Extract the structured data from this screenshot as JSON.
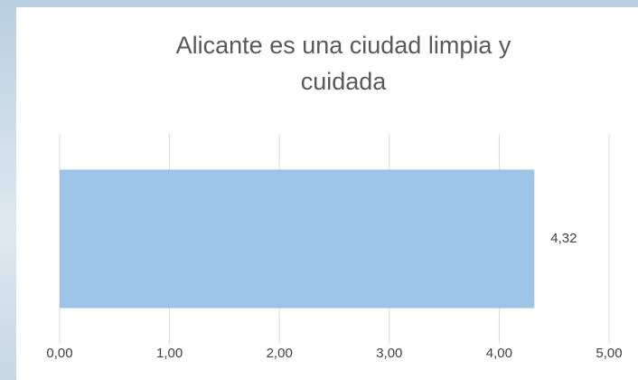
{
  "chart_data": {
    "type": "bar",
    "orientation": "horizontal",
    "title": "Alicante es una ciudad limpia y cuidada",
    "categories": [
      null
    ],
    "values": [
      4.32
    ],
    "value_labels": [
      "4,32"
    ],
    "color": "#9dc3e6",
    "xlim": [
      0,
      5
    ],
    "xticks": [
      {
        "value": 0,
        "label": "0,00"
      },
      {
        "value": 1,
        "label": "1,00"
      },
      {
        "value": 2,
        "label": "2,00"
      },
      {
        "value": 3,
        "label": "3,00"
      },
      {
        "value": 4,
        "label": "4,00"
      },
      {
        "value": 5,
        "label": "5,00"
      }
    ],
    "grid": true
  }
}
